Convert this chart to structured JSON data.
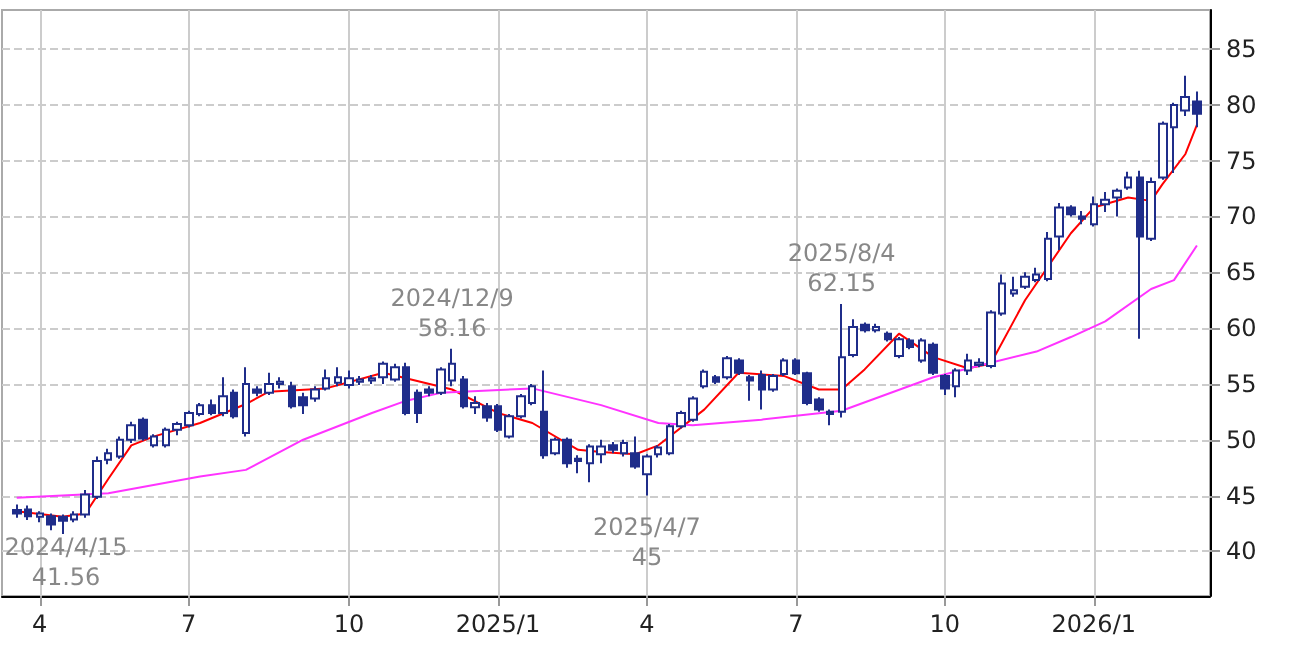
{
  "chart_data": {
    "type": "candlestick",
    "x": [
      "2024-03-18",
      "2024-03-25",
      "2024-04-01",
      "2024-04-08",
      "2024-04-15",
      "2024-04-22",
      "2024-04-29",
      "2024-05-06",
      "2024-05-13",
      "2024-05-20",
      "2024-05-27",
      "2024-06-03",
      "2024-06-10",
      "2024-06-17",
      "2024-06-24",
      "2024-07-01",
      "2024-07-08",
      "2024-07-15",
      "2024-07-22",
      "2024-07-29",
      "2024-08-05",
      "2024-08-12",
      "2024-08-19",
      "2024-08-26",
      "2024-09-02",
      "2024-09-09",
      "2024-09-16",
      "2024-09-23",
      "2024-09-30",
      "2024-10-07",
      "2024-10-14",
      "2024-10-21",
      "2024-10-28",
      "2024-11-04",
      "2024-11-11",
      "2024-11-18",
      "2024-11-25",
      "2024-12-02",
      "2024-12-09",
      "2024-12-16",
      "2024-12-23",
      "2024-12-30",
      "2025-01-06",
      "2025-01-13",
      "2025-01-20",
      "2025-01-27",
      "2025-02-03",
      "2025-02-10",
      "2025-02-17",
      "2025-02-24",
      "2025-03-03",
      "2025-03-10",
      "2025-03-17",
      "2025-03-24",
      "2025-03-31",
      "2025-04-07",
      "2025-04-14",
      "2025-04-21",
      "2025-04-28",
      "2025-05-05",
      "2025-05-12",
      "2025-05-19",
      "2025-05-26",
      "2025-06-02",
      "2025-06-09",
      "2025-06-16",
      "2025-06-23",
      "2025-06-30",
      "2025-07-07",
      "2025-07-14",
      "2025-07-21",
      "2025-07-28",
      "2025-08-04",
      "2025-08-11",
      "2025-08-18",
      "2025-08-25",
      "2025-09-01",
      "2025-09-08",
      "2025-09-15",
      "2025-09-22",
      "2025-09-29",
      "2025-10-06",
      "2025-10-13",
      "2025-10-20",
      "2025-10-27",
      "2025-11-03",
      "2025-11-10",
      "2025-11-17",
      "2025-11-24",
      "2025-12-01",
      "2025-12-08",
      "2025-12-15",
      "2025-12-22",
      "2025-12-29",
      "2026-01-05",
      "2026-01-12",
      "2026-01-19",
      "2026-01-26",
      "2026-02-02",
      "2026-02-09",
      "2026-02-16",
      "2026-02-23",
      "2026-03-02",
      "2026-03-09"
    ],
    "series": [
      {
        "color": "#1f2d8a",
        "ohlc": [
          [
            43.7,
            44.2,
            43.0,
            43.4
          ],
          [
            43.75,
            44.1,
            42.8,
            43.15
          ],
          [
            43.1,
            43.6,
            42.6,
            43.4
          ],
          [
            43.15,
            43.4,
            41.9,
            42.4
          ],
          [
            43.1,
            43.3,
            41.56,
            42.75
          ],
          [
            42.85,
            43.6,
            42.6,
            43.3
          ],
          [
            43.3,
            45.5,
            43.0,
            45.1
          ],
          [
            44.9,
            48.5,
            44.7,
            48.1
          ],
          [
            48.2,
            49.2,
            47.8,
            48.8
          ],
          [
            48.5,
            50.3,
            48.3,
            50.0
          ],
          [
            50.0,
            51.6,
            49.7,
            51.3
          ],
          [
            51.8,
            52.0,
            49.9,
            50.1
          ],
          [
            49.5,
            50.5,
            49.3,
            50.3
          ],
          [
            49.5,
            51.1,
            49.3,
            50.9
          ],
          [
            50.9,
            51.6,
            50.4,
            51.4
          ],
          [
            51.3,
            52.6,
            51.1,
            52.4
          ],
          [
            52.3,
            53.3,
            52.1,
            53.1
          ],
          [
            53.1,
            53.6,
            52.2,
            52.4
          ],
          [
            52.4,
            55.6,
            52.1,
            53.9
          ],
          [
            54.2,
            54.5,
            51.9,
            52.1
          ],
          [
            50.6,
            56.5,
            50.3,
            55.0
          ],
          [
            54.5,
            54.8,
            53.9,
            54.2
          ],
          [
            54.2,
            56.0,
            54.0,
            55.0
          ],
          [
            55.0,
            55.6,
            54.6,
            55.2
          ],
          [
            54.8,
            55.2,
            52.8,
            53.0
          ],
          [
            53.8,
            54.2,
            52.3,
            53.1
          ],
          [
            53.7,
            54.8,
            53.4,
            54.5
          ],
          [
            54.6,
            56.3,
            54.4,
            55.5
          ],
          [
            55.1,
            56.5,
            54.8,
            55.6
          ],
          [
            54.9,
            56.2,
            54.6,
            55.5
          ],
          [
            55.2,
            55.7,
            54.9,
            55.4
          ],
          [
            55.3,
            55.8,
            55.0,
            55.5
          ],
          [
            55.6,
            57.0,
            55.0,
            56.8
          ],
          [
            55.4,
            56.8,
            55.2,
            56.5
          ],
          [
            56.5,
            56.9,
            52.2,
            52.4
          ],
          [
            54.2,
            54.5,
            51.5,
            52.4
          ],
          [
            54.5,
            54.8,
            53.9,
            54.2
          ],
          [
            54.2,
            56.5,
            54.0,
            56.3
          ],
          [
            55.3,
            58.16,
            54.8,
            56.8
          ],
          [
            55.4,
            55.7,
            52.8,
            53.0
          ],
          [
            52.9,
            53.9,
            52.3,
            53.3
          ],
          [
            53.0,
            53.3,
            51.6,
            52.0
          ],
          [
            53.0,
            53.2,
            50.7,
            50.9
          ],
          [
            50.3,
            52.3,
            50.1,
            52.1
          ],
          [
            52.1,
            54.1,
            51.9,
            53.9
          ],
          [
            53.3,
            55.0,
            53.1,
            54.8
          ],
          [
            52.5,
            56.2,
            48.3,
            48.6
          ],
          [
            48.8,
            50.2,
            48.6,
            50.0
          ],
          [
            50.0,
            50.2,
            47.5,
            47.9
          ],
          [
            48.3,
            48.6,
            47.0,
            48.1
          ],
          [
            47.9,
            49.6,
            46.2,
            49.4
          ],
          [
            48.7,
            50.0,
            47.9,
            49.4
          ],
          [
            49.5,
            49.8,
            48.8,
            49.1
          ],
          [
            48.8,
            50.0,
            48.5,
            49.7
          ],
          [
            48.8,
            50.3,
            47.4,
            47.6
          ],
          [
            46.9,
            48.7,
            45.0,
            48.5
          ],
          [
            48.7,
            49.5,
            48.4,
            49.3
          ],
          [
            48.8,
            51.4,
            48.6,
            51.2
          ],
          [
            51.2,
            52.6,
            51.0,
            52.4
          ],
          [
            51.8,
            53.9,
            51.6,
            53.7
          ],
          [
            54.8,
            56.3,
            54.6,
            56.1
          ],
          [
            55.6,
            55.8,
            55.0,
            55.2
          ],
          [
            55.6,
            57.5,
            55.4,
            57.3
          ],
          [
            57.1,
            57.3,
            55.8,
            56.0
          ],
          [
            55.6,
            55.8,
            53.5,
            55.3
          ],
          [
            55.8,
            56.2,
            52.7,
            54.5
          ],
          [
            54.5,
            55.9,
            54.3,
            55.7
          ],
          [
            55.9,
            57.3,
            55.7,
            57.1
          ],
          [
            57.1,
            57.3,
            55.8,
            55.95
          ],
          [
            55.95,
            56.1,
            53.1,
            53.3
          ],
          [
            53.6,
            53.8,
            52.5,
            52.7
          ],
          [
            52.5,
            52.7,
            51.3,
            52.3
          ],
          [
            52.5,
            62.15,
            52.0,
            57.4
          ],
          [
            57.6,
            60.8,
            57.4,
            60.1
          ],
          [
            60.3,
            60.5,
            59.6,
            59.8
          ],
          [
            59.8,
            60.4,
            59.6,
            60.1
          ],
          [
            59.5,
            59.7,
            58.8,
            59.0
          ],
          [
            57.5,
            59.2,
            57.3,
            59.0
          ],
          [
            58.9,
            59.1,
            58.1,
            58.3
          ],
          [
            57.1,
            59.1,
            56.9,
            58.9
          ],
          [
            58.5,
            58.7,
            55.8,
            56.0
          ],
          [
            55.7,
            55.9,
            54.0,
            54.6
          ],
          [
            54.8,
            56.4,
            53.8,
            56.2
          ],
          [
            56.2,
            57.7,
            55.8,
            57.1
          ],
          [
            56.7,
            57.3,
            56.5,
            56.9
          ],
          [
            56.6,
            61.6,
            56.4,
            61.4
          ],
          [
            61.3,
            64.8,
            61.1,
            64.0
          ],
          [
            63.1,
            64.6,
            62.8,
            63.4
          ],
          [
            63.7,
            65.0,
            63.5,
            64.6
          ],
          [
            64.3,
            65.4,
            64.1,
            64.8
          ],
          [
            64.4,
            68.6,
            64.2,
            68.0
          ],
          [
            68.2,
            71.2,
            67.0,
            70.8
          ],
          [
            70.8,
            71.0,
            70.0,
            70.2
          ],
          [
            70.0,
            70.5,
            69.3,
            69.8
          ],
          [
            69.3,
            71.8,
            69.1,
            71.1
          ],
          [
            71.1,
            72.2,
            70.4,
            71.5
          ],
          [
            71.7,
            72.5,
            70.0,
            72.3
          ],
          [
            72.6,
            74.0,
            72.4,
            73.5
          ],
          [
            73.5,
            74.1,
            59.05,
            68.2
          ],
          [
            68.0,
            73.5,
            67.8,
            73.1
          ],
          [
            73.5,
            78.5,
            73.3,
            78.3
          ],
          [
            78.0,
            80.2,
            73.9,
            80.0
          ],
          [
            79.5,
            82.6,
            79.0,
            80.7
          ],
          [
            80.3,
            81.2,
            78.0,
            79.2
          ]
        ]
      },
      {
        "type": "line",
        "color": "#ff0000",
        "x": [
          "2024-03-18",
          "2024-04-15",
          "2024-04-29",
          "2024-05-13",
          "2024-05-27",
          "2024-06-10",
          "2024-07-08",
          "2024-08-05",
          "2024-08-19",
          "2024-09-23",
          "2024-10-28",
          "2024-12-09",
          "2025-01-06",
          "2025-01-27",
          "2025-02-24",
          "2025-03-10",
          "2025-03-31",
          "2025-04-14",
          "2025-05-12",
          "2025-06-02",
          "2025-06-30",
          "2025-07-21",
          "2025-08-04",
          "2025-08-18",
          "2025-09-08",
          "2025-09-29",
          "2025-10-20",
          "2025-11-03",
          "2025-11-24",
          "2025-12-22",
          "2026-01-05",
          "2026-01-26",
          "2026-02-09",
          "2026-02-16",
          "2026-03-02",
          "2026-03-09"
        ],
        "values": [
          43.6,
          43.1,
          43.4,
          46.5,
          49.5,
          50.3,
          51.5,
          53.2,
          54.3,
          54.6,
          56.0,
          54.5,
          52.4,
          51.5,
          49.1,
          48.9,
          48.7,
          49.5,
          52.7,
          56.0,
          55.7,
          54.5,
          54.5,
          56.3,
          59.5,
          57.4,
          56.4,
          56.8,
          62.5,
          68.5,
          70.8,
          71.7,
          71.4,
          72.9,
          75.6,
          78.2
        ]
      },
      {
        "type": "line",
        "color": "#ff33ff",
        "x": [
          "2024-03-18",
          "2024-05-13",
          "2024-07-08",
          "2024-08-05",
          "2024-09-09",
          "2024-10-21",
          "2024-11-11",
          "2024-12-02",
          "2025-01-27",
          "2025-03-10",
          "2025-04-14",
          "2025-05-05",
          "2025-06-16",
          "2025-08-04",
          "2025-09-29",
          "2025-11-03",
          "2025-12-01",
          "2025-12-22",
          "2026-01-12",
          "2026-02-09",
          "2026-02-23",
          "2026-03-09"
        ],
        "values": [
          44.8,
          45.2,
          46.7,
          47.3,
          50.0,
          52.4,
          53.5,
          54.2,
          54.6,
          53.1,
          51.5,
          51.3,
          51.8,
          52.6,
          55.6,
          56.9,
          57.9,
          59.2,
          60.6,
          63.5,
          64.3,
          67.4
        ]
      }
    ],
    "xlim": [
      "2024-03-09",
      "2026-03-17"
    ],
    "xticks": [
      {
        "value": "2024-04-01",
        "label": "4"
      },
      {
        "value": "2024-07-01",
        "label": "7"
      },
      {
        "value": "2024-10-07",
        "label": "10"
      },
      {
        "value": "2025-01-06",
        "label": "2025/1"
      },
      {
        "value": "2025-04-07",
        "label": "4"
      },
      {
        "value": "2025-07-07",
        "label": "7"
      },
      {
        "value": "2025-10-06",
        "label": "10"
      },
      {
        "value": "2026-01-05",
        "label": "2026/1"
      }
    ],
    "ylim": [
      36,
      88.5
    ],
    "yticks": [
      40,
      45,
      50,
      55,
      60,
      65,
      70,
      75,
      80,
      85
    ],
    "grid": true,
    "marker": "none",
    "annotations": [
      {
        "text": "2024/4/15\n41.56",
        "x": "2024-04-15",
        "y": 41.56
      },
      {
        "text": "2024/12/9\n58.16",
        "x": "2024-12-09",
        "y": 58.16
      },
      {
        "text": "2025/4/7\n45",
        "x": "2025-04-07",
        "y": 45
      },
      {
        "text": "2025/8/4\n62.15",
        "x": "2025-08-04",
        "y": 62.15
      }
    ]
  }
}
